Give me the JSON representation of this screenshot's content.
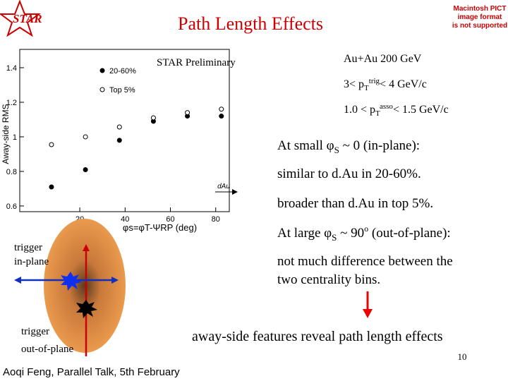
{
  "logo": "STAR",
  "title": "Path Length Effects",
  "pict_notice": [
    "Macintosh PICT",
    "image format",
    "is not supported"
  ],
  "chart_data": {
    "type": "scatter",
    "annotation": "STAR Preliminary",
    "y_label": "Away-side RMS",
    "x_label": "φs=φT-ΨRP (deg)",
    "reference_label": "dAu",
    "x": [
      7.5,
      22.5,
      37.5,
      52.5,
      67.5,
      82.5
    ],
    "series": [
      {
        "name": "20-60%",
        "color": "#000000",
        "marker": "filled",
        "values": [
          0.71,
          0.81,
          0.98,
          1.09,
          1.12,
          1.12
        ]
      },
      {
        "name": "Top 5%",
        "color": "#000000",
        "marker": "open",
        "values": [
          0.955,
          1.0,
          1.057,
          1.11,
          1.14,
          1.16
        ]
      }
    ],
    "xlim": [
      -6.5,
      86
    ],
    "xticks": [
      20,
      40,
      60,
      80
    ],
    "ylim": [
      0.567,
      1.506
    ],
    "yticks": [
      0.6,
      0.8,
      1,
      1.2,
      1.4
    ]
  },
  "conditions": [
    "Au+Au 200 GeV",
    [
      "3< p",
      "T",
      "trig",
      "< 4 GeV/c"
    ],
    [
      "1.0 < p",
      "T",
      "asso",
      "< 1.5 GeV/c"
    ]
  ],
  "bullets": [
    [
      "At small φ",
      "S",
      " ~ 0 (in-plane):"
    ],
    "similar to d.Au in 20-60%.",
    "broader than d.Au in top 5%.",
    [
      "At large φ",
      "S",
      " ~ 90",
      "o",
      " (out-of-plane):"
    ],
    [
      "not much difference between the",
      "two centrality bins."
    ]
  ],
  "trigger_in": [
    "trigger",
    "in-plane"
  ],
  "trigger_out": [
    "trigger",
    "out-of-plane"
  ],
  "conclusion": "away-side features reveal  path length effects",
  "footer": "Aoqi Feng, Parallel Talk, 5th February",
  "page_number": "10"
}
